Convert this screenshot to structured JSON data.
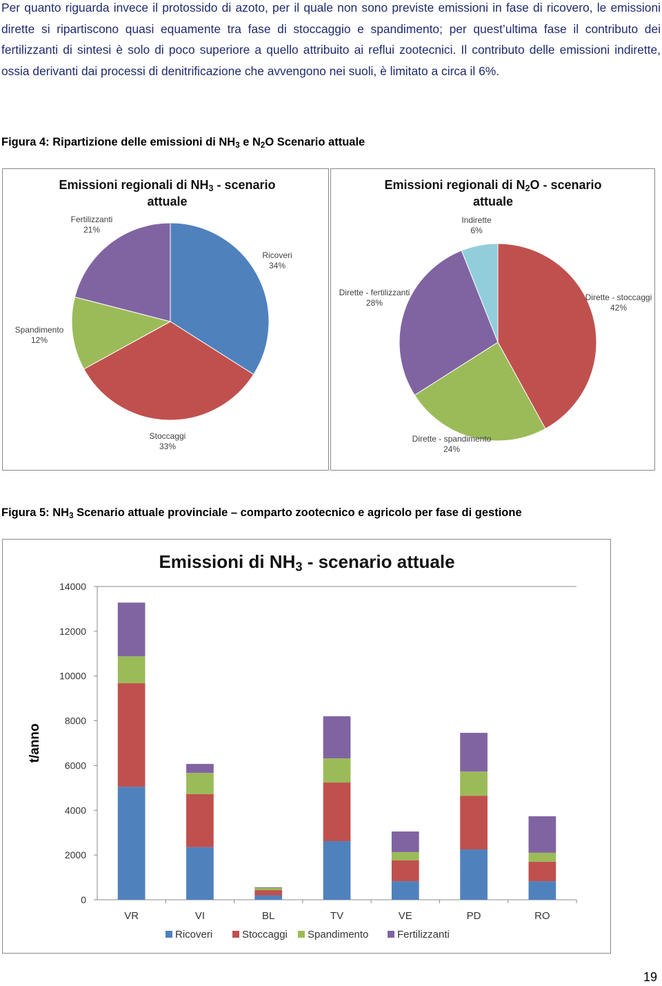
{
  "document": {
    "paragraph": "Per quanto riguarda invece il protossido di azoto, per il quale non sono previste emissioni in fase di ricovero, le emissioni dirette si ripartiscono quasi equamente tra fase di stoccaggio e spandimento; per quest’ultima fase il contributo dei fertilizzanti di sintesi è solo di poco superiore a quello attribuito ai reflui zootecnici. Il contributo delle emissioni indirette, ossia derivanti dai processi di denitrificazione che avvengono nei suoli, è limitato a circa il 6%.",
    "figure_4_caption": [
      "Figura 4: Ripartizione delle emissioni di NH",
      "3",
      " e N",
      "2",
      "O Scenario attuale"
    ],
    "figure_5_caption": [
      "Figura 5: NH",
      "3",
      " Scenario attuale provinciale – comparto zootecnico e agricolo per fase di gestione"
    ],
    "page_number": "19"
  },
  "chart_data": [
    {
      "type": "pie",
      "title": [
        "Emissioni  regionali di NH",
        "3",
        " - scenario attuale"
      ],
      "categories": [
        "Ricoveri",
        "Stoccaggi",
        "Spandimento",
        "Fertilizzanti"
      ],
      "values": [
        34,
        33,
        12,
        21
      ],
      "value_labels": [
        "34%",
        "33%",
        "12%",
        "21%"
      ],
      "colors": [
        "#4f81bd",
        "#c0504d",
        "#9bbb59",
        "#8064a2"
      ]
    },
    {
      "type": "pie",
      "title": [
        "Emissioni  regionali di N",
        "2",
        "O - scenario attuale"
      ],
      "categories": [
        "Dirette - stoccaggi",
        "Dirette - spandimento",
        "Dirette - fertilizzanti",
        "Indirette"
      ],
      "values": [
        42,
        24,
        28,
        6
      ],
      "value_labels": [
        "42%",
        "24%",
        "28%",
        "6%"
      ],
      "colors": [
        "#c0504d",
        "#9bbb59",
        "#8064a2",
        "#92cddc"
      ]
    },
    {
      "type": "stacked-bar",
      "title": [
        "Emissioni di NH",
        "3",
        " - scenario attuale"
      ],
      "y_label": "t/anno",
      "categories": [
        "VR",
        "VI",
        "BL",
        "TV",
        "VE",
        "PD",
        "RO"
      ],
      "series": [
        {
          "name": "Ricoveri",
          "color": "#4f81bd",
          "values": [
            5050,
            2350,
            200,
            2620,
            830,
            2250,
            830
          ]
        },
        {
          "name": "Stoccaggi",
          "color": "#c0504d",
          "values": [
            4630,
            2370,
            230,
            2620,
            930,
            2400,
            870
          ]
        },
        {
          "name": "Spandimento",
          "color": "#9bbb59",
          "values": [
            1200,
            950,
            100,
            1080,
            370,
            1080,
            400
          ]
        },
        {
          "name": "Fertilizzanti",
          "color": "#8064a2",
          "values": [
            2400,
            400,
            30,
            1880,
            920,
            1730,
            1630
          ]
        }
      ],
      "ylim": [
        0,
        14000
      ],
      "yticks": [
        0,
        2000,
        4000,
        6000,
        8000,
        10000,
        12000,
        14000
      ],
      "grid": false,
      "legend": "bottom"
    }
  ]
}
